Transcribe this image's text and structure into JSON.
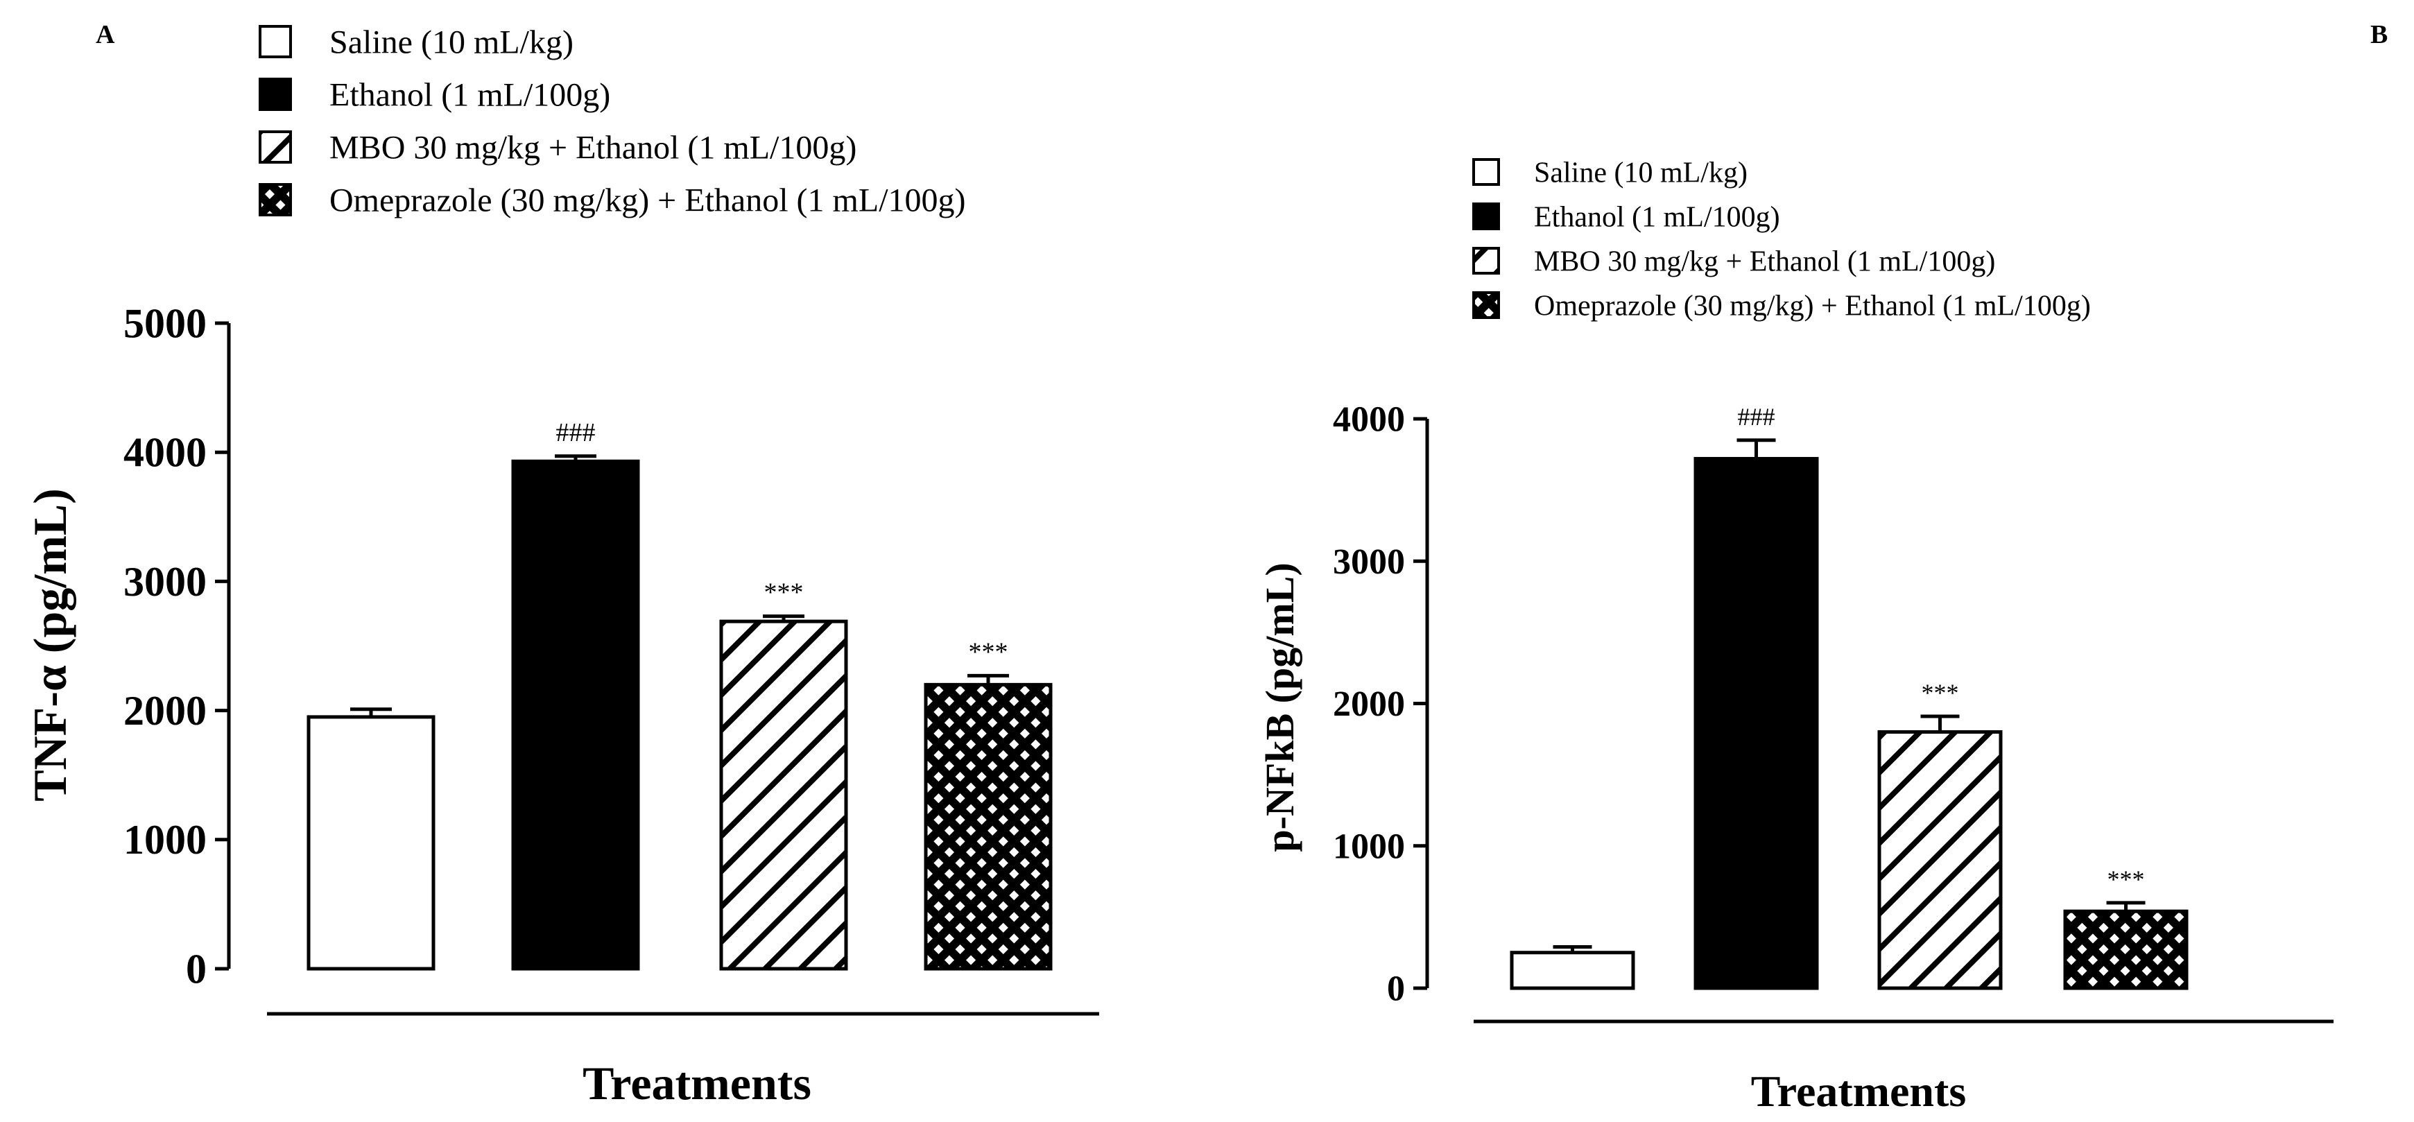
{
  "panels": {
    "a": {
      "label": "A"
    },
    "b": {
      "label": "B"
    }
  },
  "legend_items": [
    {
      "label": "Saline  (10 mL/kg)",
      "pattern": "open"
    },
    {
      "label": "Ethanol (1 mL/100g)",
      "pattern": "solid"
    },
    {
      "label": "MBO 30 mg/kg + Ethanol (1 mL/100g)",
      "pattern": "diagonal"
    },
    {
      "label": "Omeprazole (30 mg/kg) + Ethanol (1 mL/100g)",
      "pattern": "crosshatch"
    }
  ],
  "colors": {
    "ink": "#000000",
    "background": "#ffffff"
  },
  "chart_data": [
    {
      "type": "bar",
      "panel": "A",
      "title": "",
      "xlabel": "Treatments",
      "ylabel": "TNF-α  (pg/mL)",
      "ylim": [
        0,
        5000
      ],
      "yticks": [
        0,
        1000,
        2000,
        3000,
        4000,
        5000
      ],
      "categories": [
        "Saline  (10 mL/kg)",
        "Ethanol (1 mL/100g)",
        "MBO 30 mg/kg + Ethanol (1 mL/100g)",
        "Omeprazole (30 mg/kg) + Ethanol (1 mL/100g)"
      ],
      "values": [
        1950,
        3930,
        2690,
        2200
      ],
      "errors": [
        60,
        40,
        40,
        70
      ],
      "annotations": [
        "",
        "###",
        "***",
        "***"
      ],
      "grid": false,
      "legend": "top"
    },
    {
      "type": "bar",
      "panel": "B",
      "title": "",
      "xlabel": "Treatments",
      "ylabel": "p-NFkB  (pg/mL)",
      "ylim": [
        0,
        4000
      ],
      "yticks": [
        0,
        1000,
        2000,
        3000,
        4000
      ],
      "categories": [
        "Saline  (10 mL/kg)",
        "Ethanol (1 mL/100g)",
        "MBO 30 mg/kg + Ethanol (1 mL/100g)",
        "Omeprazole (30 mg/kg) + Ethanol (1 mL/100g)"
      ],
      "values": [
        250,
        3720,
        1800,
        540
      ],
      "errors": [
        40,
        130,
        110,
        60
      ],
      "annotations": [
        "",
        "###",
        "***",
        "***"
      ],
      "grid": false,
      "legend": "top"
    }
  ]
}
